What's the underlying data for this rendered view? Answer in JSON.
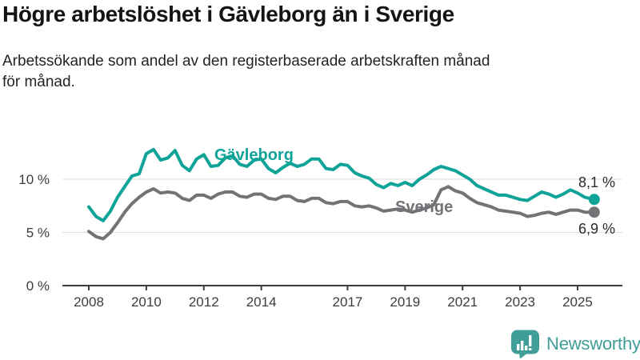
{
  "header": {
    "title": "Högre arbetslöshet i Gävleborg än i Sverige",
    "subtitle": "Arbetssökande som andel av den registerbaserade arbetskraften månad\nför månad."
  },
  "footer": {
    "brand": "Newsworthy",
    "logo_icon": "speech-bubble-bar-chart-icon"
  },
  "colors": {
    "gavleborg_line": "#10a398",
    "sverige_line": "#737377",
    "gridline": "#e1e1e1",
    "axis": "#3c3c3c",
    "end_label_text": "#2b2b2b",
    "brand_teal": "#3f9e97"
  },
  "chart_data": {
    "type": "line",
    "title": "Högre arbetslöshet i Gävleborg än i Sverige",
    "unit": "%",
    "xlabel": "",
    "ylabel": "",
    "ylim": [
      0,
      13.5
    ],
    "grid": "horizontal",
    "legend": "inline-labels",
    "x_ticks": [
      2008,
      2010,
      2012,
      2014,
      2017,
      2019,
      2021,
      2023,
      2025
    ],
    "y_ticks": [
      {
        "value": 0,
        "label": "0 %"
      },
      {
        "value": 5,
        "label": "5 %"
      },
      {
        "value": 10,
        "label": "10 %"
      }
    ],
    "series": [
      {
        "name": "Gävleborg",
        "color": "#10a398",
        "end_value": 8.1,
        "end_label": "8,1 %",
        "points": [
          [
            2008.0,
            7.4
          ],
          [
            2008.25,
            6.5
          ],
          [
            2008.5,
            6.1
          ],
          [
            2008.75,
            7.0
          ],
          [
            2009.0,
            8.3
          ],
          [
            2009.25,
            9.3
          ],
          [
            2009.5,
            10.3
          ],
          [
            2009.75,
            10.5
          ],
          [
            2010.0,
            12.4
          ],
          [
            2010.25,
            12.8
          ],
          [
            2010.5,
            11.8
          ],
          [
            2010.75,
            12.0
          ],
          [
            2011.0,
            12.7
          ],
          [
            2011.25,
            11.3
          ],
          [
            2011.5,
            10.8
          ],
          [
            2011.75,
            11.9
          ],
          [
            2012.0,
            12.3
          ],
          [
            2012.25,
            11.2
          ],
          [
            2012.5,
            11.3
          ],
          [
            2012.75,
            12.0
          ],
          [
            2013.0,
            12.2
          ],
          [
            2013.25,
            11.4
          ],
          [
            2013.5,
            11.2
          ],
          [
            2013.75,
            11.8
          ],
          [
            2014.0,
            11.9
          ],
          [
            2014.25,
            11.0
          ],
          [
            2014.5,
            10.6
          ],
          [
            2014.75,
            11.1
          ],
          [
            2015.0,
            11.5
          ],
          [
            2015.25,
            11.2
          ],
          [
            2015.5,
            11.4
          ],
          [
            2015.75,
            11.9
          ],
          [
            2016.0,
            11.9
          ],
          [
            2016.25,
            11.0
          ],
          [
            2016.5,
            10.9
          ],
          [
            2016.75,
            11.4
          ],
          [
            2017.0,
            11.3
          ],
          [
            2017.25,
            10.6
          ],
          [
            2017.5,
            10.3
          ],
          [
            2017.75,
            10.1
          ],
          [
            2018.0,
            9.5
          ],
          [
            2018.25,
            9.2
          ],
          [
            2018.5,
            9.6
          ],
          [
            2018.75,
            9.4
          ],
          [
            2019.0,
            9.7
          ],
          [
            2019.25,
            9.4
          ],
          [
            2019.5,
            10.0
          ],
          [
            2019.75,
            10.4
          ],
          [
            2020.0,
            10.9
          ],
          [
            2020.25,
            11.2
          ],
          [
            2020.5,
            11.0
          ],
          [
            2020.75,
            10.8
          ],
          [
            2021.0,
            10.4
          ],
          [
            2021.25,
            10.0
          ],
          [
            2021.5,
            9.4
          ],
          [
            2021.75,
            9.1
          ],
          [
            2022.0,
            8.8
          ],
          [
            2022.25,
            8.5
          ],
          [
            2022.5,
            8.5
          ],
          [
            2022.75,
            8.3
          ],
          [
            2023.0,
            8.1
          ],
          [
            2023.25,
            8.0
          ],
          [
            2023.5,
            8.4
          ],
          [
            2023.75,
            8.8
          ],
          [
            2024.0,
            8.6
          ],
          [
            2024.25,
            8.3
          ],
          [
            2024.5,
            8.6
          ],
          [
            2024.75,
            9.0
          ],
          [
            2025.0,
            8.7
          ],
          [
            2025.25,
            8.3
          ],
          [
            2025.58,
            8.1
          ]
        ]
      },
      {
        "name": "Sverige",
        "color": "#737377",
        "end_value": 6.9,
        "end_label": "6,9 %",
        "points": [
          [
            2008.0,
            5.1
          ],
          [
            2008.25,
            4.6
          ],
          [
            2008.5,
            4.4
          ],
          [
            2008.75,
            5.0
          ],
          [
            2009.0,
            5.9
          ],
          [
            2009.25,
            6.9
          ],
          [
            2009.5,
            7.7
          ],
          [
            2009.75,
            8.3
          ],
          [
            2010.0,
            8.8
          ],
          [
            2010.25,
            9.1
          ],
          [
            2010.5,
            8.7
          ],
          [
            2010.75,
            8.8
          ],
          [
            2011.0,
            8.7
          ],
          [
            2011.25,
            8.2
          ],
          [
            2011.5,
            8.0
          ],
          [
            2011.75,
            8.5
          ],
          [
            2012.0,
            8.5
          ],
          [
            2012.25,
            8.2
          ],
          [
            2012.5,
            8.6
          ],
          [
            2012.75,
            8.8
          ],
          [
            2013.0,
            8.8
          ],
          [
            2013.25,
            8.4
          ],
          [
            2013.5,
            8.3
          ],
          [
            2013.75,
            8.6
          ],
          [
            2014.0,
            8.6
          ],
          [
            2014.25,
            8.2
          ],
          [
            2014.5,
            8.1
          ],
          [
            2014.75,
            8.4
          ],
          [
            2015.0,
            8.4
          ],
          [
            2015.25,
            8.0
          ],
          [
            2015.5,
            7.9
          ],
          [
            2015.75,
            8.2
          ],
          [
            2016.0,
            8.2
          ],
          [
            2016.25,
            7.8
          ],
          [
            2016.5,
            7.7
          ],
          [
            2016.75,
            7.9
          ],
          [
            2017.0,
            7.9
          ],
          [
            2017.25,
            7.5
          ],
          [
            2017.5,
            7.4
          ],
          [
            2017.75,
            7.5
          ],
          [
            2018.0,
            7.3
          ],
          [
            2018.25,
            7.0
          ],
          [
            2018.5,
            7.1
          ],
          [
            2018.75,
            7.2
          ],
          [
            2019.0,
            7.1
          ],
          [
            2019.25,
            6.9
          ],
          [
            2019.5,
            7.1
          ],
          [
            2019.75,
            7.3
          ],
          [
            2020.0,
            7.6
          ],
          [
            2020.25,
            9.0
          ],
          [
            2020.5,
            9.3
          ],
          [
            2020.75,
            8.9
          ],
          [
            2021.0,
            8.7
          ],
          [
            2021.25,
            8.2
          ],
          [
            2021.5,
            7.8
          ],
          [
            2021.75,
            7.6
          ],
          [
            2022.0,
            7.4
          ],
          [
            2022.25,
            7.1
          ],
          [
            2022.5,
            7.0
          ],
          [
            2022.75,
            6.9
          ],
          [
            2023.0,
            6.8
          ],
          [
            2023.25,
            6.5
          ],
          [
            2023.5,
            6.6
          ],
          [
            2023.75,
            6.8
          ],
          [
            2024.0,
            6.9
          ],
          [
            2024.25,
            6.7
          ],
          [
            2024.5,
            6.9
          ],
          [
            2024.75,
            7.1
          ],
          [
            2025.0,
            7.1
          ],
          [
            2025.25,
            6.9
          ],
          [
            2025.58,
            6.9
          ]
        ]
      }
    ]
  }
}
